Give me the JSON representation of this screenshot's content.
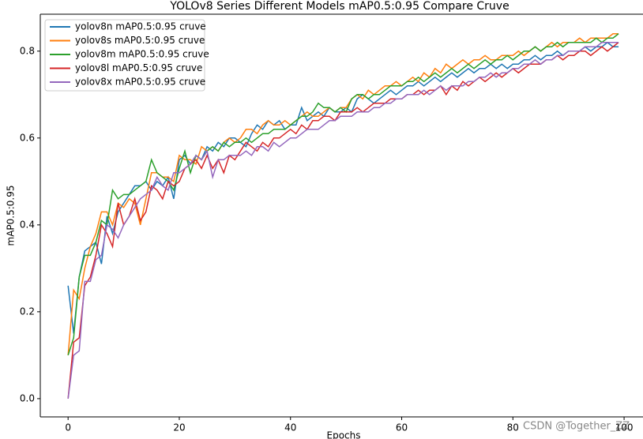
{
  "chart_data": {
    "type": "line",
    "title": "YOLOv8 Series Different Models mAP0.5:0.95 Compare Cruve",
    "x_label": "Epochs",
    "y_label": "mAP0.5:0.95",
    "watermark": "CSDN @Together_ZZ",
    "xlim": [
      -5,
      103.4
    ],
    "ylim": [
      -0.042,
      0.885
    ],
    "xticks": [
      0,
      20,
      40,
      60,
      80,
      100
    ],
    "yticks": [
      {
        "value": 0,
        "label": "0.0"
      },
      0.2,
      0.4,
      0.6,
      0.8
    ],
    "grid": false,
    "legend": "upper left",
    "x": [
      0,
      1,
      2,
      3,
      4,
      5,
      6,
      7,
      8,
      9,
      10,
      11,
      12,
      13,
      14,
      15,
      16,
      17,
      18,
      19,
      20,
      21,
      22,
      23,
      24,
      25,
      26,
      27,
      28,
      29,
      30,
      31,
      32,
      33,
      34,
      35,
      36,
      37,
      38,
      39,
      40,
      41,
      42,
      43,
      44,
      45,
      46,
      47,
      48,
      49,
      50,
      51,
      52,
      53,
      54,
      55,
      56,
      57,
      58,
      59,
      60,
      61,
      62,
      63,
      64,
      65,
      66,
      67,
      68,
      69,
      70,
      71,
      72,
      73,
      74,
      75,
      76,
      77,
      78,
      79,
      80,
      81,
      82,
      83,
      84,
      85,
      86,
      87,
      88,
      89,
      90,
      91,
      92,
      93,
      94,
      95,
      96,
      97,
      98,
      99
    ],
    "series": [
      {
        "name": "yolov8n mAP0.5:0.95 cruve",
        "color": "#1f77b4",
        "values": [
          0.26,
          0.15,
          0.28,
          0.34,
          0.35,
          0.36,
          0.31,
          0.42,
          0.38,
          0.43,
          0.45,
          0.47,
          0.49,
          0.49,
          0.5,
          0.48,
          0.5,
          0.49,
          0.51,
          0.46,
          0.55,
          0.56,
          0.54,
          0.56,
          0.55,
          0.58,
          0.57,
          0.59,
          0.58,
          0.6,
          0.6,
          0.59,
          0.58,
          0.61,
          0.63,
          0.62,
          0.64,
          0.63,
          0.64,
          0.62,
          0.63,
          0.63,
          0.67,
          0.64,
          0.65,
          0.66,
          0.65,
          0.67,
          0.66,
          0.66,
          0.67,
          0.66,
          0.69,
          0.7,
          0.69,
          0.68,
          0.69,
          0.7,
          0.71,
          0.7,
          0.71,
          0.72,
          0.72,
          0.73,
          0.72,
          0.73,
          0.74,
          0.73,
          0.74,
          0.75,
          0.74,
          0.75,
          0.76,
          0.75,
          0.76,
          0.76,
          0.77,
          0.76,
          0.77,
          0.76,
          0.77,
          0.77,
          0.78,
          0.78,
          0.79,
          0.78,
          0.79,
          0.79,
          0.8,
          0.79,
          0.8,
          0.8,
          0.8,
          0.81,
          0.8,
          0.81,
          0.81,
          0.82,
          0.81,
          0.81
        ]
      },
      {
        "name": "yolov8s mAP0.5:0.95 cruve",
        "color": "#ff7f0e",
        "values": [
          0.1,
          0.25,
          0.23,
          0.3,
          0.35,
          0.38,
          0.43,
          0.43,
          0.4,
          0.45,
          0.44,
          0.46,
          0.45,
          0.4,
          0.46,
          0.52,
          0.52,
          0.51,
          0.51,
          0.5,
          0.56,
          0.55,
          0.55,
          0.54,
          0.58,
          0.57,
          0.58,
          0.57,
          0.59,
          0.6,
          0.59,
          0.6,
          0.62,
          0.62,
          0.61,
          0.63,
          0.64,
          0.63,
          0.63,
          0.64,
          0.63,
          0.64,
          0.65,
          0.66,
          0.65,
          0.65,
          0.66,
          0.67,
          0.66,
          0.67,
          0.67,
          0.69,
          0.7,
          0.69,
          0.71,
          0.7,
          0.71,
          0.72,
          0.72,
          0.73,
          0.72,
          0.73,
          0.74,
          0.73,
          0.75,
          0.74,
          0.76,
          0.75,
          0.77,
          0.76,
          0.77,
          0.78,
          0.77,
          0.78,
          0.78,
          0.79,
          0.78,
          0.78,
          0.79,
          0.79,
          0.79,
          0.8,
          0.79,
          0.8,
          0.81,
          0.8,
          0.81,
          0.82,
          0.81,
          0.82,
          0.82,
          0.82,
          0.83,
          0.82,
          0.83,
          0.83,
          0.83,
          0.83,
          0.84,
          0.84
        ]
      },
      {
        "name": "yolov8m mAP0.5:0.95 cruve",
        "color": "#2ca02c",
        "values": [
          0.1,
          0.14,
          0.28,
          0.33,
          0.33,
          0.36,
          0.41,
          0.4,
          0.48,
          0.46,
          0.47,
          0.47,
          0.48,
          0.49,
          0.5,
          0.55,
          0.52,
          0.51,
          0.5,
          0.48,
          0.53,
          0.57,
          0.52,
          0.56,
          0.55,
          0.57,
          0.58,
          0.57,
          0.59,
          0.58,
          0.59,
          0.59,
          0.6,
          0.59,
          0.6,
          0.61,
          0.61,
          0.62,
          0.62,
          0.62,
          0.63,
          0.64,
          0.65,
          0.65,
          0.66,
          0.68,
          0.67,
          0.67,
          0.66,
          0.67,
          0.66,
          0.69,
          0.7,
          0.7,
          0.69,
          0.7,
          0.7,
          0.71,
          0.72,
          0.72,
          0.72,
          0.73,
          0.73,
          0.74,
          0.73,
          0.74,
          0.75,
          0.74,
          0.75,
          0.76,
          0.75,
          0.76,
          0.77,
          0.76,
          0.77,
          0.78,
          0.77,
          0.78,
          0.78,
          0.79,
          0.78,
          0.79,
          0.8,
          0.8,
          0.81,
          0.8,
          0.81,
          0.81,
          0.82,
          0.81,
          0.82,
          0.82,
          0.82,
          0.82,
          0.82,
          0.83,
          0.82,
          0.83,
          0.83,
          0.84
        ]
      },
      {
        "name": "yolov8l mAP0.5:0.95 cruve",
        "color": "#d62728",
        "values": [
          0.0,
          0.13,
          0.14,
          0.26,
          0.28,
          0.33,
          0.4,
          0.38,
          0.35,
          0.45,
          0.4,
          0.42,
          0.46,
          0.41,
          0.43,
          0.49,
          0.48,
          0.46,
          0.5,
          0.49,
          0.5,
          0.53,
          0.54,
          0.55,
          0.53,
          0.56,
          0.53,
          0.55,
          0.52,
          0.56,
          0.55,
          0.57,
          0.59,
          0.58,
          0.57,
          0.59,
          0.58,
          0.6,
          0.6,
          0.61,
          0.62,
          0.61,
          0.63,
          0.62,
          0.64,
          0.64,
          0.65,
          0.65,
          0.64,
          0.66,
          0.66,
          0.66,
          0.67,
          0.66,
          0.67,
          0.68,
          0.68,
          0.68,
          0.69,
          0.69,
          0.69,
          0.7,
          0.7,
          0.71,
          0.7,
          0.71,
          0.71,
          0.72,
          0.7,
          0.72,
          0.71,
          0.73,
          0.72,
          0.73,
          0.74,
          0.73,
          0.74,
          0.75,
          0.74,
          0.75,
          0.76,
          0.75,
          0.76,
          0.77,
          0.77,
          0.77,
          0.78,
          0.78,
          0.79,
          0.78,
          0.79,
          0.79,
          0.8,
          0.8,
          0.79,
          0.8,
          0.81,
          0.8,
          0.81,
          0.82
        ]
      },
      {
        "name": "yolov8x mAP0.5:0.95 cruve",
        "color": "#9467bd",
        "values": [
          0.0,
          0.1,
          0.11,
          0.27,
          0.27,
          0.32,
          0.33,
          0.4,
          0.39,
          0.37,
          0.4,
          0.42,
          0.44,
          0.46,
          0.47,
          0.48,
          0.51,
          0.49,
          0.48,
          0.52,
          0.52,
          0.53,
          0.54,
          0.56,
          0.55,
          0.57,
          0.51,
          0.55,
          0.55,
          0.56,
          0.56,
          0.56,
          0.57,
          0.56,
          0.58,
          0.58,
          0.57,
          0.59,
          0.58,
          0.59,
          0.6,
          0.6,
          0.61,
          0.62,
          0.62,
          0.62,
          0.63,
          0.64,
          0.64,
          0.65,
          0.65,
          0.65,
          0.66,
          0.66,
          0.66,
          0.67,
          0.67,
          0.68,
          0.68,
          0.69,
          0.69,
          0.7,
          0.7,
          0.7,
          0.71,
          0.7,
          0.71,
          0.72,
          0.71,
          0.72,
          0.72,
          0.72,
          0.73,
          0.73,
          0.74,
          0.74,
          0.75,
          0.74,
          0.75,
          0.75,
          0.76,
          0.76,
          0.77,
          0.77,
          0.78,
          0.77,
          0.78,
          0.78,
          0.79,
          0.79,
          0.8,
          0.8,
          0.8,
          0.81,
          0.81,
          0.81,
          0.82,
          0.82,
          0.82,
          0.82
        ]
      }
    ]
  }
}
